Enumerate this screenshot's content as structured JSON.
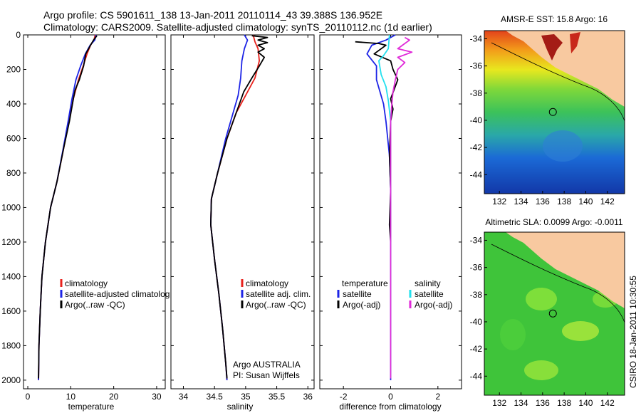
{
  "header": {
    "line1": "Argo profile: CS 5901611_138 13-Jan-2011 20110114_43 39.388S 136.952E",
    "line2": "Climatology: CARS2009. Satellite-adjusted climatology: synTS_20110112.nc (1d earlier)"
  },
  "footer_note": "CSIRO 18-Jan-2011 10:30:55",
  "colors": {
    "climatology": "#e8211c",
    "satellite": "#1d24e6",
    "argo": "#000000",
    "satellite_salinity": "#22e0ee",
    "argo_salinity": "#e02ad8"
  },
  "chart_data": [
    {
      "type": "line",
      "xlabel": "temperature",
      "ylabel": "",
      "xlim": [
        -1,
        32
      ],
      "ylim": [
        0,
        2050
      ],
      "y_reversed": true,
      "x_ticks": [
        0,
        10,
        20,
        30
      ],
      "y_ticks": [
        0,
        200,
        400,
        600,
        800,
        1000,
        1200,
        1400,
        1600,
        1800,
        2000
      ],
      "legend": [
        "climatology",
        "satellite-adjusted climatolog",
        "Argo(..raw -QC)"
      ],
      "series": [
        {
          "name": "climatology",
          "color": "#e8211c",
          "points": [
            [
              15.7,
              0
            ],
            [
              15.4,
              30
            ],
            [
              14.6,
              60
            ],
            [
              13.8,
              110
            ],
            [
              12.9,
              180
            ],
            [
              11.8,
              260
            ],
            [
              10.6,
              370
            ],
            [
              9.6,
              500
            ],
            [
              8.4,
              650
            ],
            [
              6.8,
              850
            ],
            [
              5.3,
              1000
            ],
            [
              4.1,
              1200
            ],
            [
              3.3,
              1400
            ],
            [
              2.9,
              1600
            ],
            [
              2.6,
              1800
            ],
            [
              2.5,
              2000
            ]
          ]
        },
        {
          "name": "satellite-adjusted climatolog",
          "color": "#1d24e6",
          "points": [
            [
              15.9,
              0
            ],
            [
              15.6,
              30
            ],
            [
              14.5,
              60
            ],
            [
              13.4,
              110
            ],
            [
              12.3,
              180
            ],
            [
              11.2,
              260
            ],
            [
              10.3,
              370
            ],
            [
              9.4,
              500
            ],
            [
              8.3,
              650
            ],
            [
              6.8,
              850
            ],
            [
              5.3,
              1000
            ],
            [
              4.1,
              1200
            ],
            [
              3.3,
              1400
            ],
            [
              2.9,
              1600
            ],
            [
              2.6,
              1800
            ],
            [
              2.5,
              2000
            ]
          ]
        },
        {
          "name": "Argo(..raw -QC)",
          "color": "#000000",
          "points": [
            [
              16.1,
              5
            ],
            [
              15.3,
              30
            ],
            [
              14.6,
              60
            ],
            [
              13.5,
              110
            ],
            [
              13.0,
              180
            ],
            [
              12.0,
              260
            ],
            [
              11.0,
              320
            ],
            [
              10.6,
              370
            ],
            [
              9.7,
              500
            ],
            [
              8.4,
              650
            ],
            [
              6.8,
              850
            ],
            [
              5.3,
              1000
            ],
            [
              4.1,
              1200
            ],
            [
              3.3,
              1400
            ],
            [
              2.9,
              1600
            ],
            [
              2.6,
              1800
            ],
            [
              2.5,
              1990
            ]
          ]
        }
      ]
    },
    {
      "type": "line",
      "xlabel": "salinity",
      "ylabel": "",
      "xlim": [
        33.8,
        36.1
      ],
      "ylim": [
        0,
        2050
      ],
      "y_reversed": true,
      "x_ticks": [
        34,
        34.5,
        35,
        35.5,
        36
      ],
      "legend": [
        "climatology",
        "satellite adj. clim.",
        "Argo(..raw -QC)"
      ],
      "annotations": [
        "Argo AUSTRALIA",
        "PI: Susan Wijffels"
      ],
      "series": [
        {
          "name": "climatology",
          "color": "#e8211c",
          "points": [
            [
              35.12,
              0
            ],
            [
              35.15,
              40
            ],
            [
              35.2,
              80
            ],
            [
              35.22,
              150
            ],
            [
              35.15,
              250
            ],
            [
              35.0,
              350
            ],
            [
              34.85,
              450
            ],
            [
              34.7,
              600
            ],
            [
              34.55,
              800
            ],
            [
              34.45,
              950
            ],
            [
              34.44,
              1100
            ],
            [
              34.5,
              1300
            ],
            [
              34.57,
              1500
            ],
            [
              34.63,
              1700
            ],
            [
              34.68,
              1900
            ],
            [
              34.7,
              2000
            ]
          ]
        },
        {
          "name": "satellite adj. clim.",
          "color": "#1d24e6",
          "points": [
            [
              34.98,
              0
            ],
            [
              35.03,
              30
            ],
            [
              34.98,
              80
            ],
            [
              34.94,
              150
            ],
            [
              34.92,
              250
            ],
            [
              34.88,
              350
            ],
            [
              34.8,
              450
            ],
            [
              34.68,
              600
            ],
            [
              34.55,
              800
            ],
            [
              34.45,
              950
            ],
            [
              34.44,
              1100
            ],
            [
              34.5,
              1300
            ],
            [
              34.57,
              1500
            ],
            [
              34.63,
              1700
            ],
            [
              34.68,
              1900
            ],
            [
              34.7,
              2000
            ]
          ]
        },
        {
          "name": "Argo(..raw -QC)",
          "color": "#000000",
          "points": [
            [
              35.1,
              5
            ],
            [
              35.35,
              15
            ],
            [
              35.2,
              30
            ],
            [
              35.35,
              45
            ],
            [
              35.2,
              60
            ],
            [
              35.3,
              80
            ],
            [
              35.2,
              100
            ],
            [
              35.3,
              130
            ],
            [
              35.22,
              180
            ],
            [
              35.1,
              250
            ],
            [
              34.97,
              330
            ],
            [
              34.9,
              400
            ],
            [
              34.82,
              480
            ],
            [
              34.7,
              600
            ],
            [
              34.55,
              800
            ],
            [
              34.45,
              950
            ],
            [
              34.44,
              1100
            ],
            [
              34.5,
              1300
            ],
            [
              34.57,
              1500
            ],
            [
              34.63,
              1700
            ],
            [
              34.68,
              1900
            ],
            [
              34.7,
              1990
            ]
          ]
        }
      ]
    },
    {
      "type": "line",
      "xlabel": "difference from climatology",
      "ylabel": "",
      "xlim": [
        -3,
        3
      ],
      "ylim": [
        0,
        2050
      ],
      "y_reversed": true,
      "x_ticks": [
        -2,
        0,
        2
      ],
      "legend_groups": [
        {
          "heading": "temperature",
          "items": [
            "satellite",
            "Argo(-adj)"
          ]
        },
        {
          "heading": "salinity",
          "items": [
            "satellite",
            "Argo(-adj)"
          ]
        }
      ],
      "series": [
        {
          "name": "temperature satellite",
          "color": "#1d24e6",
          "points": [
            [
              0.2,
              0
            ],
            [
              -0.2,
              30
            ],
            [
              -0.8,
              60
            ],
            [
              -1.0,
              110
            ],
            [
              -0.6,
              180
            ],
            [
              -0.6,
              260
            ],
            [
              -0.3,
              400
            ],
            [
              -0.2,
              500
            ],
            [
              -0.05,
              700
            ],
            [
              0,
              900
            ],
            [
              0,
              1200
            ],
            [
              0,
              1600
            ],
            [
              0,
              2000
            ]
          ]
        },
        {
          "name": "temperature Argo(-adj)",
          "color": "#000000",
          "points": [
            [
              -1.5,
              40
            ],
            [
              -0.5,
              50
            ],
            [
              -0.2,
              60
            ],
            [
              -0.7,
              110
            ],
            [
              0,
              150
            ],
            [
              0.1,
              200
            ],
            [
              0.3,
              260
            ],
            [
              0,
              370
            ],
            [
              0.1,
              430
            ],
            [
              0,
              500
            ],
            [
              -0.05,
              700
            ],
            [
              0,
              900
            ],
            [
              -0.05,
              1100
            ],
            [
              0,
              1200
            ]
          ]
        },
        {
          "name": "salinity satellite",
          "color": "#22e0ee",
          "points": [
            [
              -0.05,
              0
            ],
            [
              -0.1,
              80
            ],
            [
              -0.3,
              120
            ],
            [
              -0.5,
              150
            ],
            [
              -0.4,
              230
            ],
            [
              -0.2,
              300
            ],
            [
              -0.1,
              380
            ],
            [
              0,
              500
            ],
            [
              0,
              700
            ],
            [
              0,
              1000
            ],
            [
              0,
              1400
            ],
            [
              0,
              1800
            ],
            [
              0,
              1990
            ]
          ]
        },
        {
          "name": "salinity Argo(-adj)",
          "color": "#e02ad8",
          "points": [
            [
              0.6,
              15
            ],
            [
              0.8,
              30
            ],
            [
              0.5,
              60
            ],
            [
              0.3,
              80
            ],
            [
              0.9,
              100
            ],
            [
              0.3,
              130
            ],
            [
              0.6,
              160
            ],
            [
              0.3,
              200
            ],
            [
              0.2,
              260
            ],
            [
              0.1,
              330
            ],
            [
              0.05,
              400
            ],
            [
              0,
              500
            ],
            [
              0,
              700
            ],
            [
              0,
              1000
            ],
            [
              0,
              1400
            ],
            [
              0,
              1800
            ],
            [
              0,
              1990
            ]
          ]
        }
      ]
    },
    {
      "type": "heatmap",
      "title": "AMSR-E SST: 15.8 Argo: 16",
      "x_ticks": [
        132,
        134,
        136,
        138,
        140,
        142
      ],
      "y_ticks": [
        -34,
        -36,
        -38,
        -40,
        -42,
        -44
      ],
      "xlim": [
        130.6,
        143.6
      ],
      "ylim": [
        -45.4,
        -33.4
      ],
      "marker": {
        "lon": 136.952,
        "lat": -39.388
      }
    },
    {
      "type": "heatmap",
      "title": "Altimetric SLA: 0.0099 Argo: -0.0011",
      "x_ticks": [
        132,
        134,
        136,
        138,
        140,
        142
      ],
      "y_ticks": [
        -34,
        -36,
        -38,
        -40,
        -42,
        -44
      ],
      "xlim": [
        130.6,
        143.6
      ],
      "ylim": [
        -45.4,
        -33.4
      ],
      "marker": {
        "lon": 136.952,
        "lat": -39.388
      }
    }
  ]
}
